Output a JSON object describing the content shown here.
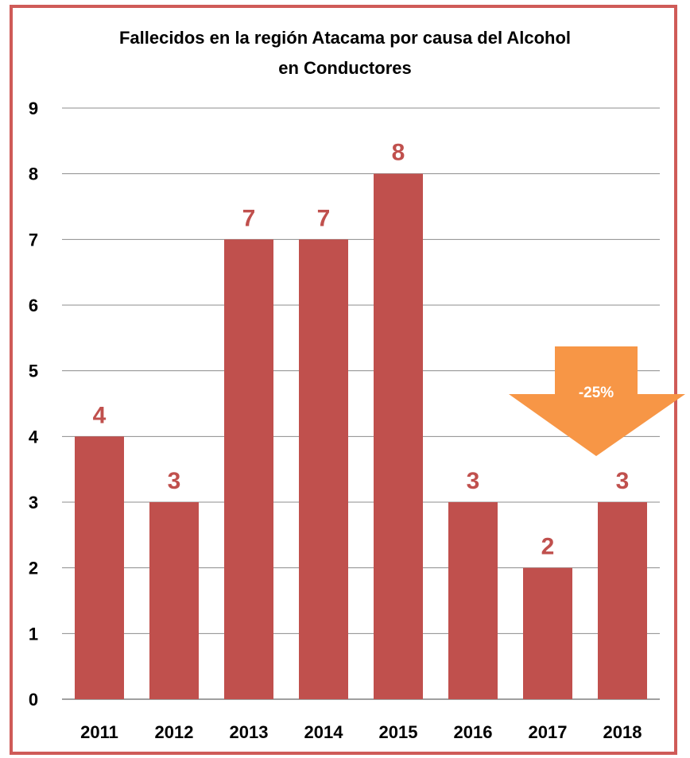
{
  "chart_data": {
    "type": "bar",
    "title_lines": [
      "Fallecidos en la región Atacama por causa del Alcohol",
      "en Conductores"
    ],
    "categories": [
      "2011",
      "2012",
      "2013",
      "2014",
      "2015",
      "2016",
      "2017",
      "2018"
    ],
    "values": [
      4,
      3,
      7,
      7,
      8,
      3,
      2,
      3
    ],
    "ylim": [
      0,
      9
    ],
    "yticks": [
      0,
      1,
      2,
      3,
      4,
      5,
      6,
      7,
      8,
      9
    ],
    "grid": true,
    "xlabel": "",
    "ylabel": "",
    "bar_color": "#c0504d",
    "data_label_color": "#c0504d",
    "annotation": {
      "text": "-25%",
      "shape": "down-arrow",
      "color": "#f79646"
    }
  }
}
